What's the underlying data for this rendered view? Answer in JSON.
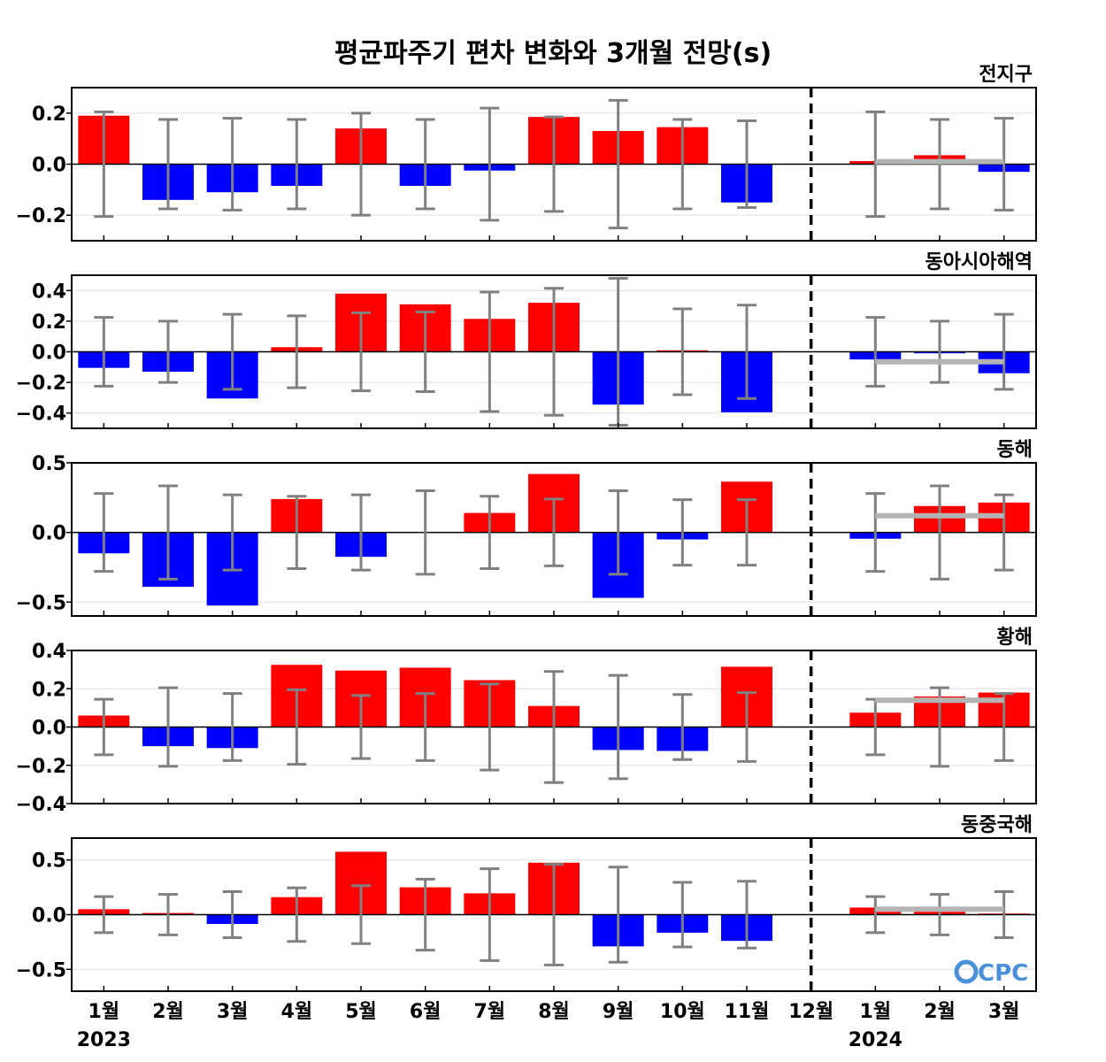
{
  "chart_data": {
    "type": "bar",
    "title": "평균파주기 편차 변화와 3개월 전망(s)",
    "month_labels": [
      "1월",
      "2월",
      "3월",
      "4월",
      "5월",
      "6월",
      "7월",
      "8월",
      "9월",
      "10월",
      "11월",
      "12월",
      "1월",
      "2월",
      "3월"
    ],
    "year_labels": [
      "2023",
      "2024"
    ],
    "forecast_divider": "between 11월 and 12월",
    "colors": {
      "positive": "#ff0000",
      "negative": "#0000ff",
      "errorbar": "#808080",
      "forecast_line": "#b4b4b4",
      "zero_line": "#000000",
      "divider": "#000000"
    },
    "panels": [
      {
        "name": "전지구",
        "ylim": [
          -0.3,
          0.3
        ],
        "ticks": [
          -0.2,
          0.0,
          0.2
        ],
        "tick_labels": [
          "−0.2",
          "0.0",
          "0.2"
        ],
        "values": [
          0.19,
          -0.14,
          -0.11,
          -0.085,
          0.14,
          -0.085,
          -0.025,
          0.185,
          0.13,
          0.145,
          -0.15,
          0.0,
          0.012,
          0.035,
          -0.03
        ],
        "errors": [
          0.205,
          0.175,
          0.18,
          0.175,
          0.2,
          0.175,
          0.22,
          0.185,
          0.25,
          0.175,
          0.17,
          null,
          0.205,
          0.175,
          0.18
        ],
        "forecast_mean": 0.01
      },
      {
        "name": "동아시아해역",
        "ylim": [
          -0.5,
          0.5
        ],
        "ticks": [
          -0.4,
          -0.2,
          0.0,
          0.2,
          0.4
        ],
        "tick_labels": [
          "−0.4",
          "−0.2",
          "0.0",
          "0.2",
          "0.4"
        ],
        "values": [
          -0.105,
          -0.13,
          -0.305,
          0.03,
          0.38,
          0.31,
          0.215,
          0.32,
          -0.345,
          0.01,
          -0.395,
          0.0,
          -0.05,
          -0.01,
          -0.14
        ],
        "errors": [
          0.225,
          0.2,
          0.245,
          0.235,
          0.255,
          0.26,
          0.39,
          0.415,
          0.48,
          0.28,
          0.305,
          null,
          0.225,
          0.2,
          0.245
        ],
        "forecast_mean": -0.065
      },
      {
        "name": "동해",
        "ylim": [
          -0.6,
          0.5
        ],
        "ticks": [
          -0.5,
          0.0,
          0.5
        ],
        "tick_labels": [
          "−0.5",
          "0.0",
          "0.5"
        ],
        "values": [
          -0.15,
          -0.39,
          -0.525,
          0.24,
          -0.175,
          0.0,
          0.14,
          0.42,
          -0.47,
          -0.05,
          0.365,
          0.0,
          -0.045,
          0.19,
          0.215
        ],
        "errors": [
          0.28,
          0.335,
          0.27,
          0.26,
          0.27,
          0.3,
          0.26,
          0.24,
          0.3,
          0.235,
          0.235,
          null,
          0.28,
          0.335,
          0.27
        ],
        "forecast_mean": 0.12
      },
      {
        "name": "황해",
        "ylim": [
          -0.4,
          0.4
        ],
        "ticks": [
          -0.4,
          -0.2,
          0.0,
          0.2,
          0.4
        ],
        "tick_labels": [
          "−0.4",
          "−0.2",
          "0.0",
          "0.2",
          "0.4"
        ],
        "values": [
          0.06,
          -0.1,
          -0.11,
          0.325,
          0.295,
          0.31,
          0.245,
          0.11,
          -0.12,
          -0.125,
          0.315,
          0.0,
          0.075,
          0.16,
          0.18
        ],
        "errors": [
          0.145,
          0.205,
          0.175,
          0.195,
          0.165,
          0.175,
          0.225,
          0.29,
          0.27,
          0.17,
          0.18,
          null,
          0.145,
          0.205,
          0.175
        ],
        "forecast_mean": 0.14
      },
      {
        "name": "동중국해",
        "ylim": [
          -0.7,
          0.7
        ],
        "ticks": [
          -0.5,
          0.0,
          0.5
        ],
        "tick_labels": [
          "−0.5",
          "0.0",
          "0.5"
        ],
        "values": [
          0.05,
          0.015,
          -0.085,
          0.16,
          0.575,
          0.25,
          0.195,
          0.475,
          -0.29,
          -0.165,
          -0.24,
          0.0,
          0.065,
          0.04,
          0.01
        ],
        "errors": [
          0.165,
          0.185,
          0.21,
          0.245,
          0.265,
          0.325,
          0.42,
          0.46,
          0.435,
          0.295,
          0.305,
          null,
          0.165,
          0.185,
          0.21
        ],
        "forecast_mean": 0.05
      }
    ],
    "logo": "CPC"
  }
}
